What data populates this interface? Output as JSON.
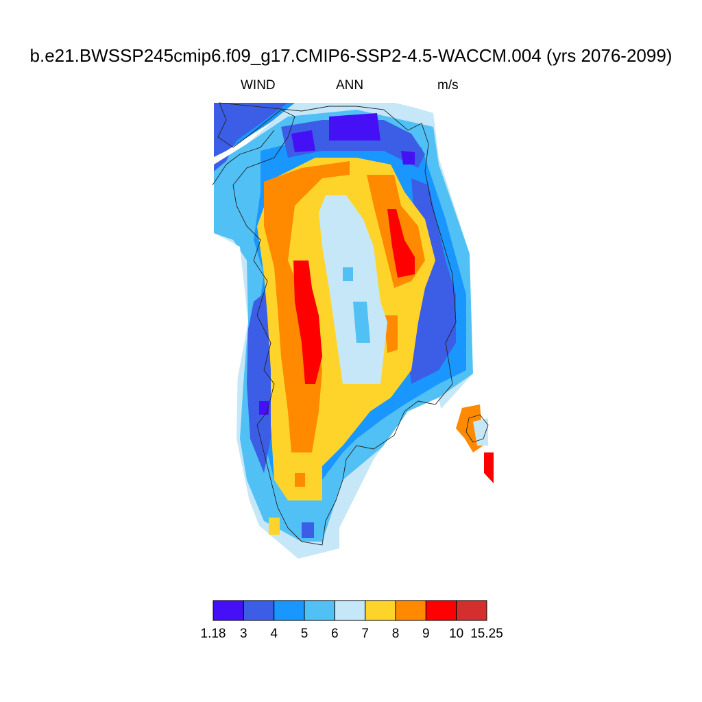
{
  "title": "b.e21.BWSSP245cmip6.f09_g17.CMIP6-SSP2-4.5-WACCM.004 (yrs 2076-2099)",
  "left_label": "WIND",
  "center_label": "ANN",
  "right_label": "m/s",
  "colorbar": {
    "colors": [
      "#4610f6",
      "#3c5ee6",
      "#1a96ff",
      "#50c0f5",
      "#c6e7f8",
      "#ffd42a",
      "#ff8a00",
      "#ff0000",
      "#d42f2f"
    ],
    "tick_labels": [
      "1.18",
      "3",
      "4",
      "5",
      "6",
      "7",
      "8",
      "9",
      "10",
      "15.25"
    ]
  }
}
